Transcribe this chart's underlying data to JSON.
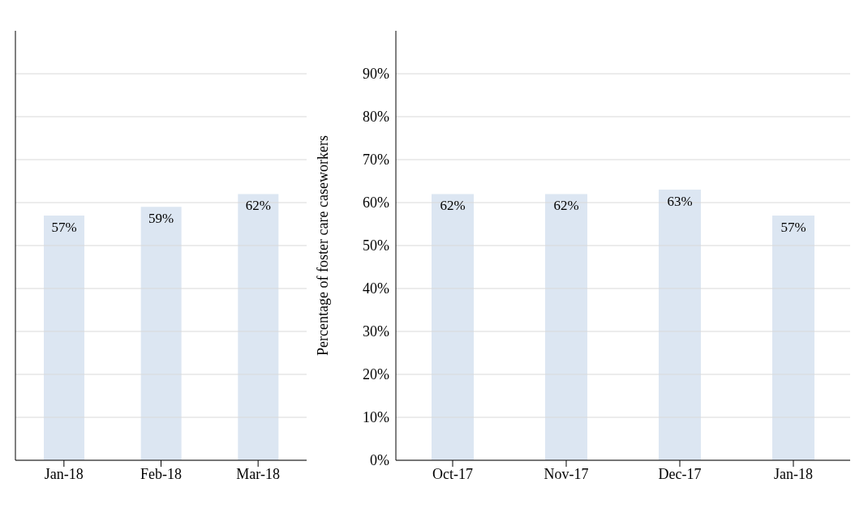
{
  "chart_data": [
    {
      "type": "bar",
      "categories": [
        "Jan-18",
        "Feb-18",
        "Mar-18"
      ],
      "values": [
        57,
        59,
        62
      ],
      "value_labels": [
        "57%",
        "59%",
        "62%"
      ],
      "color": "#dce6f2",
      "ylim": [
        0,
        100
      ],
      "yticks": [
        0,
        10,
        20,
        30,
        40,
        50,
        60,
        70,
        80,
        90
      ],
      "grid": "y",
      "tick_labels": "x"
    },
    {
      "type": "bar",
      "ylabel": "Percentage of foster care caseworkers",
      "categories": [
        "Oct-17",
        "Nov-17",
        "Dec-17",
        "Jan-18"
      ],
      "values": [
        62,
        62,
        63,
        57
      ],
      "value_labels": [
        "62%",
        "62%",
        "63%",
        "57%"
      ],
      "color": "#dce6f2",
      "ylim": [
        0,
        100
      ],
      "yticks": [
        {
          "value": 0,
          "label": "0%"
        },
        {
          "value": 10,
          "label": "10%"
        },
        {
          "value": 20,
          "label": "20%"
        },
        {
          "value": 30,
          "label": "30%"
        },
        {
          "value": 40,
          "label": "40%"
        },
        {
          "value": 50,
          "label": "50%"
        },
        {
          "value": 60,
          "label": "60%"
        },
        {
          "value": 70,
          "label": "70%"
        },
        {
          "value": 80,
          "label": "80%"
        },
        {
          "value": 90,
          "label": "90%"
        }
      ],
      "grid": "y"
    }
  ]
}
